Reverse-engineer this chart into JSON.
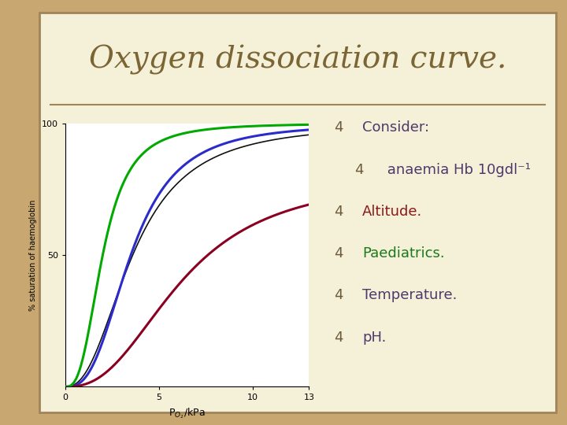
{
  "title": "Oxygen dissociation curve.",
  "title_color": "#7B6535",
  "title_fontsize": 28,
  "background_color": "#F5F0D8",
  "border_color": "#A0845A",
  "slide_bg": "#C8A870",
  "bullet_symbol": "4",
  "bullet_color": "#6B5B3A",
  "bullet_items": [
    {
      "text": "Consider:",
      "color": "#4B3A6B",
      "indent": false
    },
    {
      "text": " anaemia Hb 10gdl⁻¹",
      "color": "#4B3A6B",
      "indent": true
    },
    {
      "text": "Altitude.",
      "color": "#8B1A1A",
      "indent": false
    },
    {
      "text": "Paediatrics.",
      "color": "#1A7A1A",
      "indent": false
    },
    {
      "text": "Temperature.",
      "color": "#4B3A6B",
      "indent": false
    },
    {
      "text": "pH.",
      "color": "#4B3A6B",
      "indent": false
    }
  ],
  "separator_color": "#A0845A",
  "plot_bg": "#FFFFFF",
  "normal_curve_color": "#2B2BCC",
  "anaemia_curve_color": "#8B0020",
  "altitude_curve_color": "#00AA00",
  "black_curve_color": "#111111",
  "xlabel": "P$_{O_2}$/kPa",
  "ylabel": "% saturation of haemoglobin",
  "xlim": [
    0,
    13
  ],
  "ylim": [
    0,
    100
  ],
  "xticks": [
    0,
    5,
    10,
    13
  ],
  "yticks": [
    50,
    100
  ]
}
